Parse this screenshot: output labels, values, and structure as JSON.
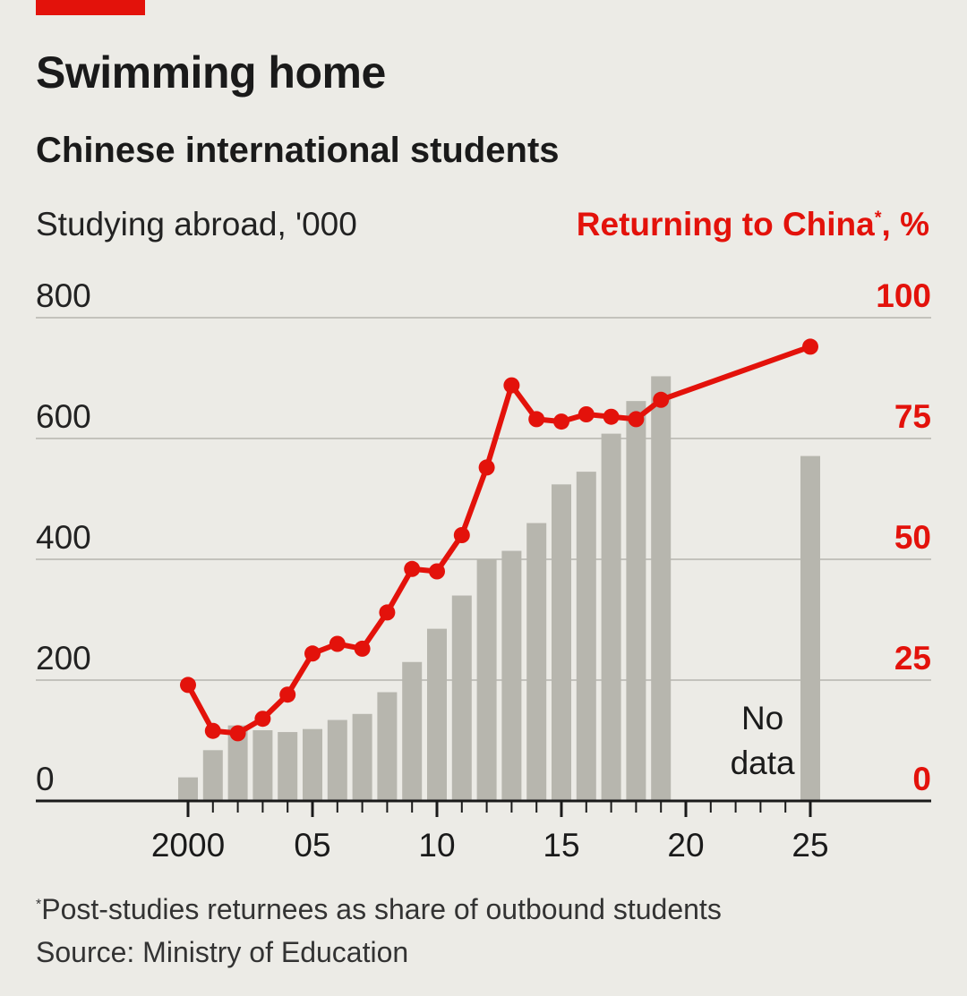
{
  "title": "Swimming home",
  "subtitle": "Chinese international students",
  "left_axis_title": "Studying abroad, '000",
  "right_axis_title": "Returning to China",
  "right_axis_marker": "*",
  "right_axis_unit": ", %",
  "footnote_marker": "*",
  "footnote": "Post-studies returnees as share of outbound students",
  "source": "Source: Ministry of Education",
  "colors": {
    "accent": "#e3120b",
    "bars": "#b7b6ae",
    "background": "#ecebe6",
    "gridline": "#b5b4ad",
    "baseline": "#1a1a1a"
  },
  "chart_data": {
    "type": "bar",
    "x_axis": {
      "range": [
        2000,
        2025
      ],
      "tick_values": [
        2000,
        2005,
        2010,
        2015,
        2020,
        2025
      ],
      "tick_labels": [
        "2000",
        "05",
        "10",
        "15",
        "20",
        "25"
      ]
    },
    "left_axis": {
      "title": "Studying abroad, '000",
      "range": [
        0,
        800
      ],
      "tick_values": [
        0,
        200,
        400,
        600,
        800
      ],
      "tick_labels": [
        "0",
        "200",
        "400",
        "600",
        "800"
      ]
    },
    "right_axis": {
      "title": "Returning to China*, %",
      "range": [
        0,
        100
      ],
      "tick_values": [
        0,
        25,
        50,
        75,
        100
      ],
      "tick_labels": [
        "0",
        "25",
        "50",
        "75",
        "100"
      ]
    },
    "grid": true,
    "series": [
      {
        "type": "bar",
        "axis": "left",
        "points": [
          {
            "x": 2000,
            "y": 39
          },
          {
            "x": 2001,
            "y": 84
          },
          {
            "x": 2002,
            "y": 125
          },
          {
            "x": 2003,
            "y": 117
          },
          {
            "x": 2004,
            "y": 114
          },
          {
            "x": 2005,
            "y": 119
          },
          {
            "x": 2006,
            "y": 134
          },
          {
            "x": 2007,
            "y": 144
          },
          {
            "x": 2008,
            "y": 180
          },
          {
            "x": 2009,
            "y": 230
          },
          {
            "x": 2010,
            "y": 285
          },
          {
            "x": 2011,
            "y": 340
          },
          {
            "x": 2012,
            "y": 400
          },
          {
            "x": 2013,
            "y": 414
          },
          {
            "x": 2014,
            "y": 460
          },
          {
            "x": 2015,
            "y": 524
          },
          {
            "x": 2016,
            "y": 545
          },
          {
            "x": 2017,
            "y": 608
          },
          {
            "x": 2018,
            "y": 662
          },
          {
            "x": 2019,
            "y": 703
          },
          {
            "x": 2025,
            "y": 571
          }
        ]
      },
      {
        "type": "line",
        "axis": "right",
        "points": [
          {
            "x": 2000,
            "y": 24
          },
          {
            "x": 2001,
            "y": 14.5
          },
          {
            "x": 2002,
            "y": 14
          },
          {
            "x": 2003,
            "y": 17
          },
          {
            "x": 2004,
            "y": 22
          },
          {
            "x": 2005,
            "y": 30.5
          },
          {
            "x": 2006,
            "y": 32.5
          },
          {
            "x": 2007,
            "y": 31.5
          },
          {
            "x": 2008,
            "y": 39
          },
          {
            "x": 2009,
            "y": 48
          },
          {
            "x": 2010,
            "y": 47.5
          },
          {
            "x": 2011,
            "y": 55
          },
          {
            "x": 2012,
            "y": 69
          },
          {
            "x": 2013,
            "y": 86
          },
          {
            "x": 2014,
            "y": 79
          },
          {
            "x": 2015,
            "y": 78.5
          },
          {
            "x": 2016,
            "y": 80
          },
          {
            "x": 2017,
            "y": 79.5
          },
          {
            "x": 2018,
            "y": 79
          },
          {
            "x": 2019,
            "y": 83
          },
          {
            "x": 2025,
            "y": 94
          }
        ]
      }
    ],
    "annotations": [
      {
        "text_line1": "No",
        "text_line2": "data",
        "x": 2022
      }
    ]
  }
}
